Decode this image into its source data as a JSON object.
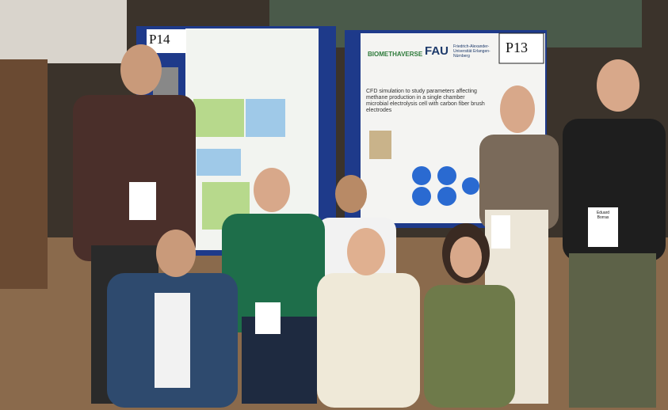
{
  "posters": [
    {
      "number": "P14"
    },
    {
      "number": "P13",
      "logo": "FAU",
      "university": "Friedrich-Alexander-Universität Erlangen-Nürnberg",
      "project": "BIOMETHAVERSE",
      "title": "CFD simulation to study parameters affecting methane production in a single chamber microbial electrolysis cell with carbon fiber brush electrodes"
    }
  ],
  "badges": [
    "Eduard Borras"
  ]
}
